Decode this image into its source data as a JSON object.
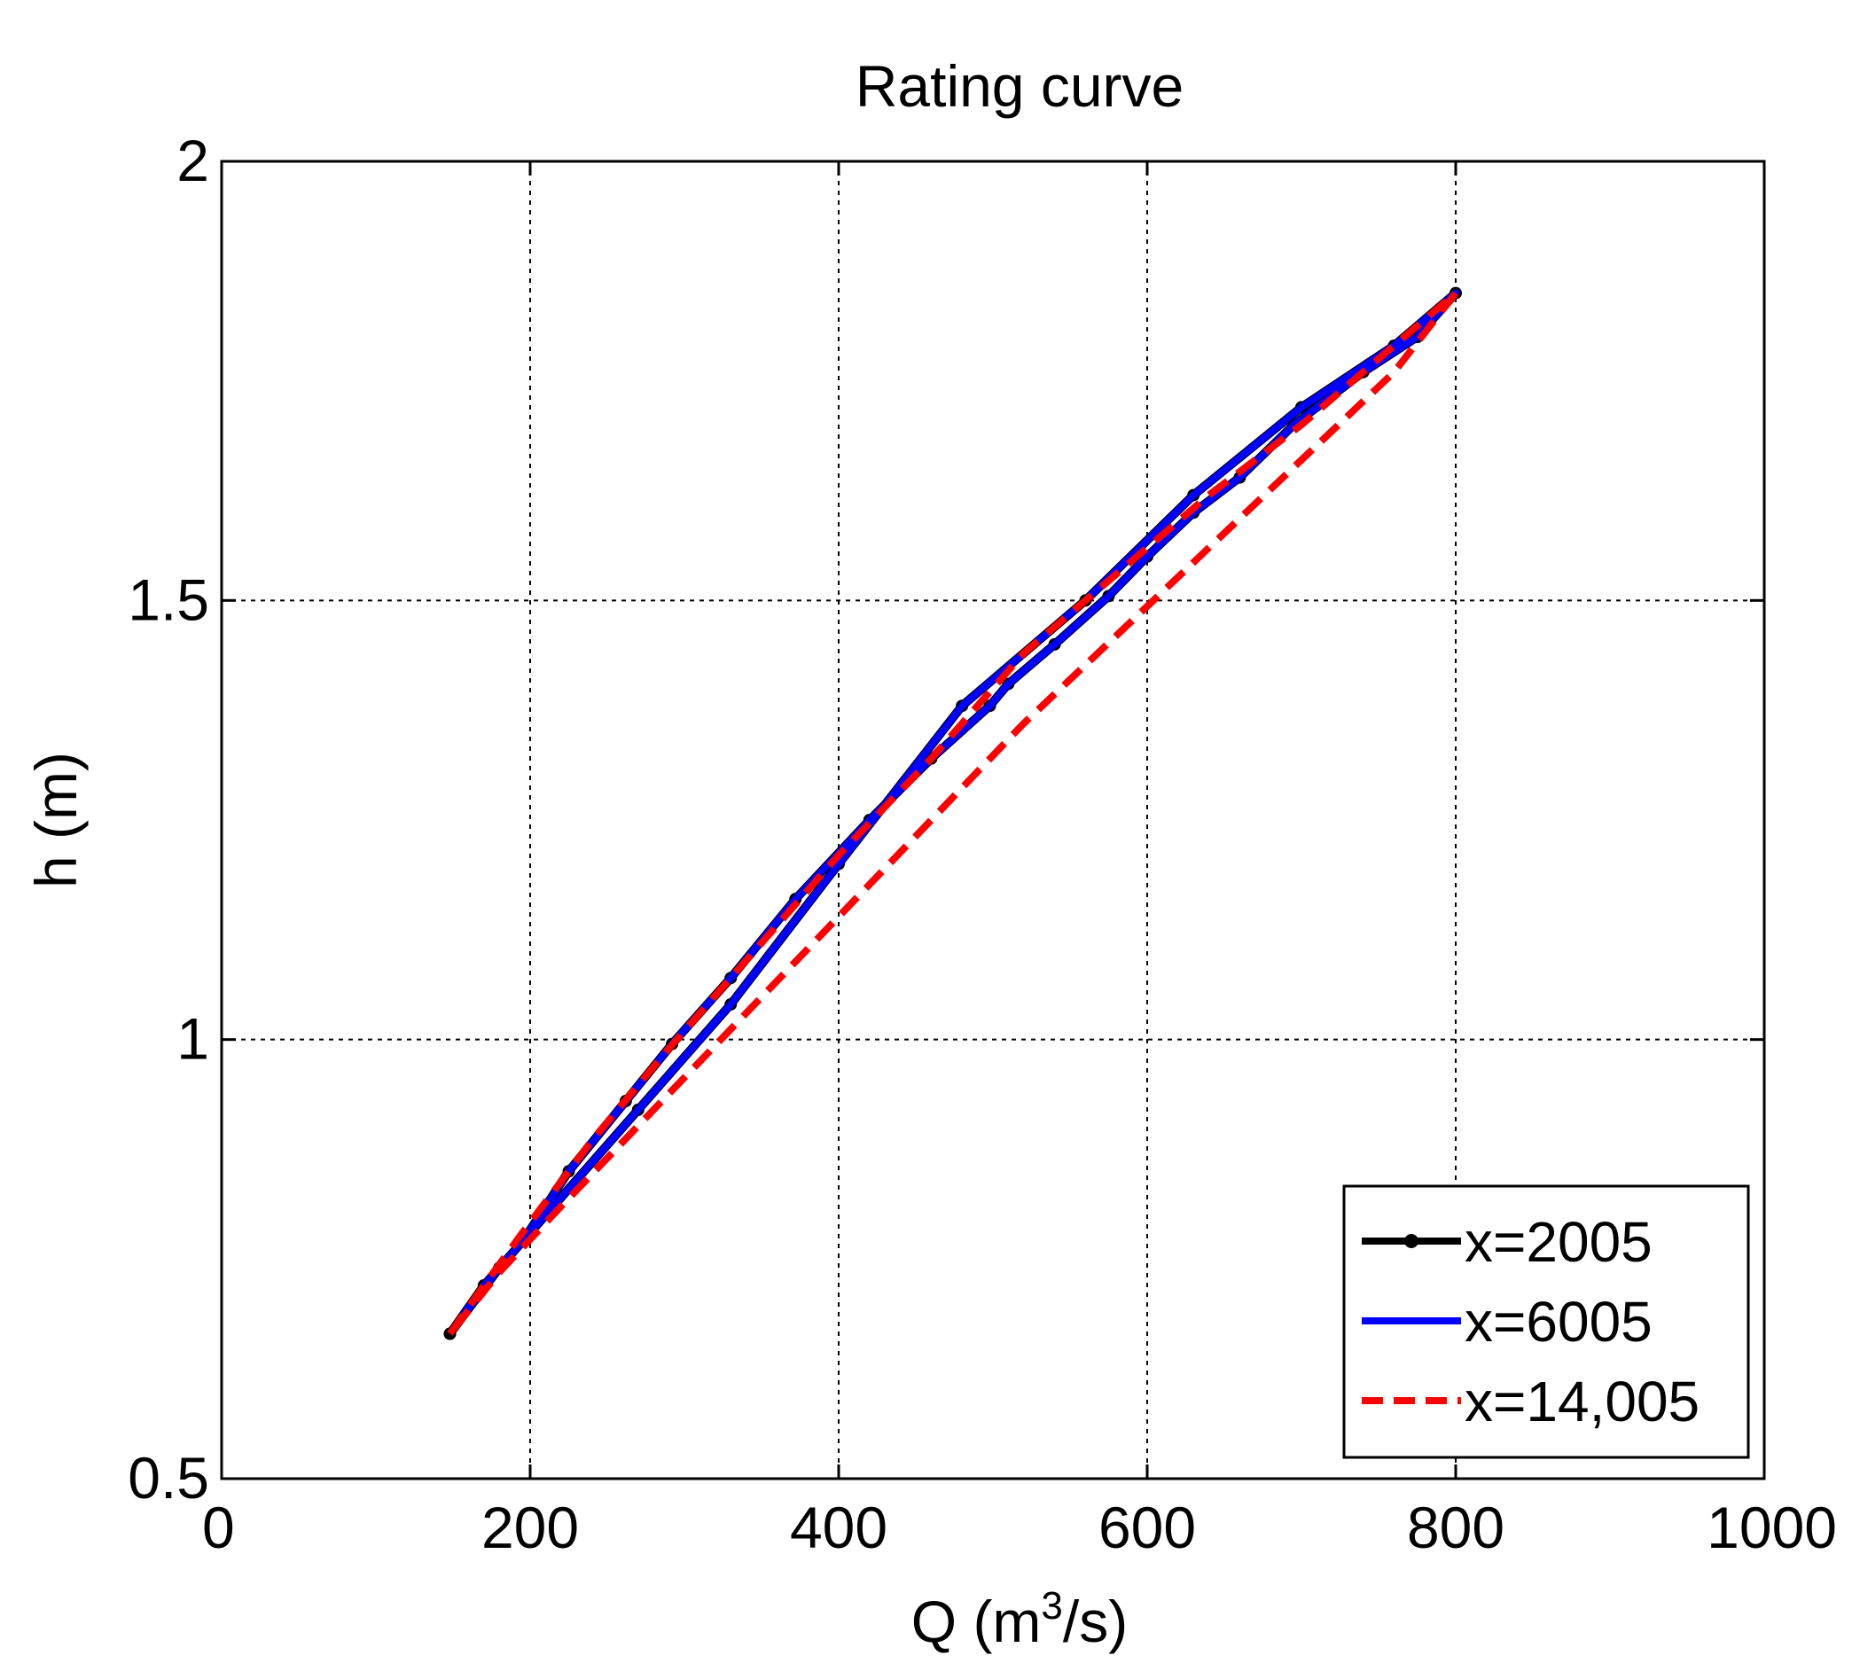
{
  "chart_data": {
    "type": "line",
    "title": "Rating curve",
    "xlabel_prefix": "Q (m",
    "xlabel_sup": "3",
    "xlabel_suffix": "/s)",
    "ylabel": "h (m)",
    "xlim": [
      0,
      1000
    ],
    "ylim": [
      0.5,
      2
    ],
    "xticks": [
      0,
      200,
      400,
      600,
      800,
      1000
    ],
    "xtick_labels": [
      "0",
      "200",
      "400",
      "600",
      "800",
      "1000"
    ],
    "yticks": [
      0.5,
      1,
      1.5,
      2
    ],
    "ytick_labels": [
      "0.5",
      "1",
      "1.5",
      "2"
    ],
    "grid": true,
    "legend_position": "bottom-right",
    "series": [
      {
        "name": "x=2005",
        "color": "#000000",
        "style": "solid-markers",
        "x": [
          148,
          170,
          195,
          225,
          262,
          292,
          330,
          372,
          420,
          460,
          498,
          510,
          540,
          575,
          600,
          630,
          660,
          695,
          740,
          775,
          800,
          760,
          700,
          630,
          560,
          480,
          400,
          330,
          270,
          215,
          180,
          148
        ],
        "y": [
          0.665,
          0.72,
          0.77,
          0.85,
          0.93,
          0.995,
          1.07,
          1.16,
          1.25,
          1.32,
          1.38,
          1.405,
          1.45,
          1.505,
          1.55,
          1.6,
          1.64,
          1.7,
          1.76,
          1.8,
          1.85,
          1.79,
          1.72,
          1.62,
          1.5,
          1.38,
          1.2,
          1.04,
          0.92,
          0.81,
          0.74,
          0.665
        ]
      },
      {
        "name": "x=6005",
        "color": "#0000ff",
        "style": "solid",
        "x": [
          148,
          170,
          195,
          225,
          262,
          292,
          330,
          372,
          420,
          460,
          498,
          510,
          540,
          575,
          600,
          630,
          660,
          695,
          740,
          775,
          800,
          760,
          700,
          630,
          560,
          480,
          400,
          330,
          270,
          215,
          180,
          148
        ],
        "y": [
          0.665,
          0.72,
          0.77,
          0.85,
          0.93,
          0.995,
          1.07,
          1.16,
          1.25,
          1.32,
          1.38,
          1.405,
          1.45,
          1.505,
          1.55,
          1.6,
          1.64,
          1.7,
          1.76,
          1.8,
          1.85,
          1.79,
          1.72,
          1.62,
          1.5,
          1.38,
          1.2,
          1.04,
          0.92,
          0.81,
          0.74,
          0.665
        ]
      },
      {
        "name": "x=14,005",
        "color": "#ff0000",
        "style": "dashed",
        "x": [
          148,
          170,
          195,
          240,
          290,
          340,
          400,
          460,
          520,
          580,
          640,
          700,
          760,
          800,
          760,
          700,
          640,
          580,
          520,
          460,
          400,
          340,
          280,
          220,
          180,
          148
        ],
        "y": [
          0.665,
          0.72,
          0.78,
          0.885,
          0.99,
          1.09,
          1.21,
          1.32,
          1.44,
          1.53,
          1.62,
          1.7,
          1.79,
          1.85,
          1.76,
          1.66,
          1.56,
          1.46,
          1.36,
          1.25,
          1.14,
          1.03,
          0.92,
          0.81,
          0.735,
          0.665
        ]
      }
    ]
  }
}
